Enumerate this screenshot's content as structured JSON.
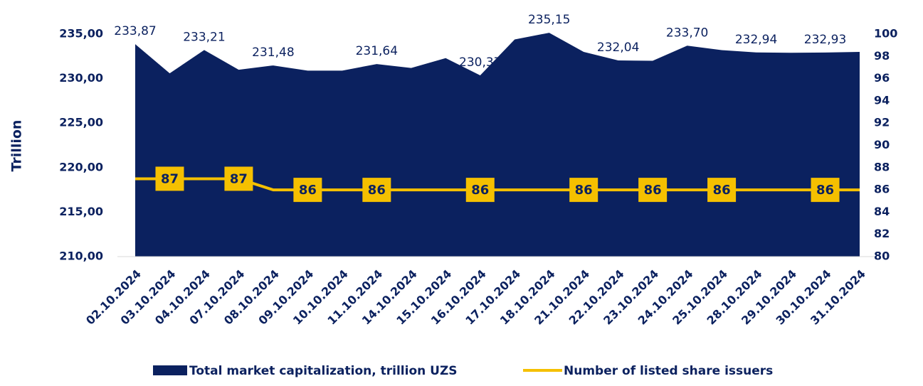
{
  "chart_data": {
    "type": "area-line",
    "categories": [
      "02.10.2024",
      "03.10.2024",
      "04.10.2024",
      "07.10.2024",
      "08.10.2024",
      "09.10.2024",
      "10.10.2024",
      "11.10.2024",
      "14.10.2024",
      "15.10.2024",
      "16.10.2024",
      "17.10.2024",
      "18.10.2024",
      "21.10.2024",
      "22.10.2024",
      "23.10.2024",
      "24.10.2024",
      "25.10.2024",
      "28.10.2024",
      "29.10.2024",
      "30.10.2024",
      "31.10.2024"
    ],
    "ylabel": "Trillion",
    "ylim": [
      210,
      235
    ],
    "yticks": [
      {
        "value": 210,
        "label": "210,00"
      },
      {
        "value": 215,
        "label": "215,00"
      },
      {
        "value": 220,
        "label": "220,00"
      },
      {
        "value": 225,
        "label": "225,00"
      },
      {
        "value": 230,
        "label": "230,00"
      },
      {
        "value": 235,
        "label": "235,00"
      }
    ],
    "y2lim": [
      80,
      100
    ],
    "y2ticks": [
      80,
      82,
      84,
      86,
      88,
      90,
      92,
      94,
      96,
      98,
      100
    ],
    "series": [
      {
        "name": "Total market capitalization, trillion UZS",
        "type": "area",
        "color": "#0b215f",
        "values": [
          233.87,
          230.6,
          233.21,
          231.0,
          231.48,
          230.9,
          230.9,
          231.64,
          231.2,
          232.3,
          230.37,
          234.4,
          235.15,
          233.0,
          232.04,
          232.0,
          233.7,
          233.2,
          232.94,
          232.9,
          232.93,
          233.0
        ],
        "value_labels": [
          "233,87",
          null,
          "233,21",
          null,
          "231,48",
          null,
          null,
          "231,64",
          null,
          null,
          "230,37",
          null,
          "235,15",
          null,
          "232,04",
          null,
          "233,70",
          null,
          "232,94",
          null,
          "232,93",
          null
        ]
      },
      {
        "name": "Number of listed share issuers",
        "type": "line",
        "axis": "y2",
        "color": "#f5c000",
        "values": [
          87,
          87,
          87,
          87,
          86,
          86,
          86,
          86,
          86,
          86,
          86,
          86,
          86,
          86,
          86,
          86,
          86,
          86,
          86,
          86,
          86,
          86
        ],
        "value_labels": [
          null,
          "87",
          null,
          "87",
          null,
          "86",
          null,
          "86",
          null,
          null,
          "86",
          null,
          null,
          "86",
          null,
          "86",
          null,
          "86",
          null,
          null,
          "86",
          null
        ]
      }
    ]
  }
}
